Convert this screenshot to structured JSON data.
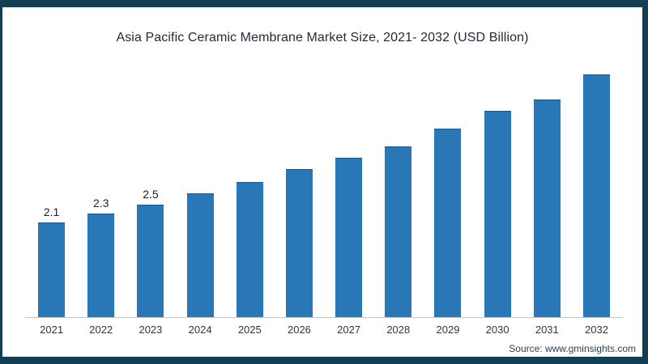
{
  "frame": {
    "border_color": "#133f54",
    "background": "#ffffff"
  },
  "title": "Asia Pacific Ceramic Membrane Market Size, 2021- 2032 (USD Billion)",
  "source": "Source: www.gminsights.com",
  "chart_data": {
    "type": "bar",
    "title": "Asia Pacific Ceramic Membrane Market Size, 2021- 2032 (USD Billion)",
    "categories": [
      "2021",
      "2022",
      "2023",
      "2024",
      "2025",
      "2026",
      "2027",
      "2028",
      "2029",
      "2030",
      "2031",
      "2032"
    ],
    "values": [
      2.1,
      2.3,
      2.5,
      2.75,
      3.0,
      3.3,
      3.55,
      3.8,
      4.2,
      4.6,
      4.85,
      5.4
    ],
    "data_labels": [
      "2.1",
      "2.3",
      "2.5",
      "",
      "",
      "",
      "",
      "",
      "",
      "",
      "",
      ""
    ],
    "xlabel": "",
    "ylabel": "",
    "ylim": [
      0,
      5.6
    ],
    "grid": false,
    "legend": false,
    "bar_color": "#2a77b8",
    "bar_edge_color": "#2d343c",
    "axis_line_color": "#c4c4c4",
    "source": "Source: www.gminsights.com"
  }
}
